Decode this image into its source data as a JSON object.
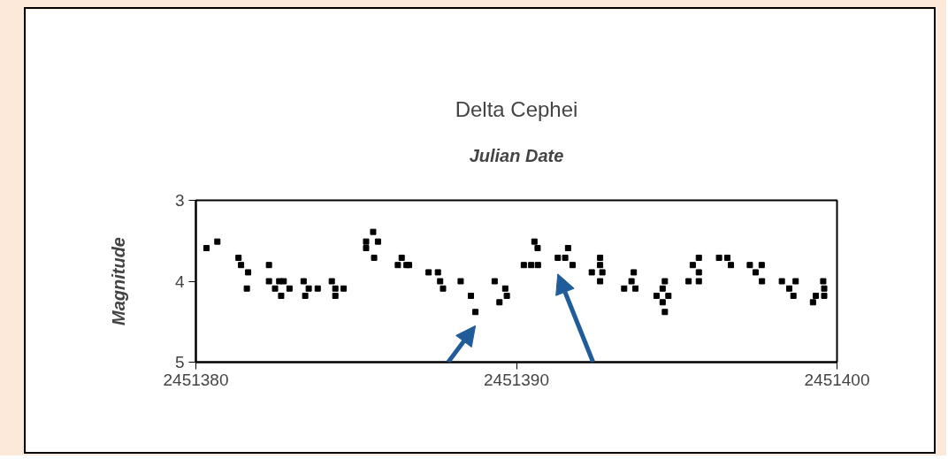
{
  "chart_data": {
    "type": "scatter",
    "title": "Delta Cephei",
    "xlabel": "Julian Date",
    "ylabel": "Magnitude",
    "x": [
      2451380.33,
      2451380.67,
      2451381.33,
      2451381.41,
      2451381.63,
      2451381.59,
      2451382.28,
      2451382.28,
      2451382.6,
      2451382.74,
      2451382.47,
      2451382.92,
      2451382.66,
      2451383.36,
      2451383.52,
      2451383.8,
      2451383.41,
      2451384.24,
      2451384.35,
      2451384.61,
      2451384.35,
      2451385.31,
      2451385.31,
      2451385.53,
      2451385.68,
      2451385.56,
      2451386.42,
      2451386.3,
      2451386.57,
      2451386.65,
      2451387.26,
      2451387.55,
      2451387.62,
      2451387.71,
      2451388.26,
      2451388.58,
      2451388.72,
      2451389.32,
      2451389.65,
      2451389.7,
      2451389.47,
      2451390.56,
      2451390.66,
      2451390.23,
      2451390.46,
      2451390.67,
      2451391.61,
      2451391.29,
      2451391.52,
      2451391.75,
      2451392.61,
      2451392.61,
      2451392.35,
      2451392.68,
      2451392.61,
      2451393.66,
      2451393.59,
      2451393.36,
      2451393.71,
      2451394.63,
      2451394.56,
      2451394.37,
      2451394.74,
      2451394.56,
      2451394.63,
      2451395.69,
      2451395.5,
      2451395.69,
      2451395.37,
      2451395.69,
      2451396.32,
      2451396.58,
      2451396.69,
      2451397.28,
      2451397.65,
      2451397.46,
      2451397.66,
      2451398.28,
      2451398.71,
      2451398.51,
      2451398.64,
      2451399.57,
      2451399.6,
      2451399.34,
      2451399.6,
      2451399.25
    ],
    "values": [
      3.59,
      3.51,
      3.71,
      3.8,
      3.89,
      4.09,
      3.8,
      4.0,
      4.0,
      4.0,
      4.09,
      4.09,
      4.18,
      4.0,
      4.09,
      4.09,
      4.18,
      4.0,
      4.09,
      4.09,
      4.18,
      3.51,
      3.59,
      3.39,
      3.51,
      3.71,
      3.71,
      3.8,
      3.8,
      3.8,
      3.89,
      3.89,
      4.0,
      4.09,
      4.0,
      4.18,
      4.38,
      4.0,
      4.09,
      4.18,
      4.26,
      3.51,
      3.59,
      3.8,
      3.8,
      3.8,
      3.59,
      3.71,
      3.71,
      3.8,
      3.71,
      3.8,
      3.89,
      3.89,
      4.0,
      3.89,
      4.0,
      4.09,
      4.09,
      4.0,
      4.09,
      4.18,
      4.18,
      4.26,
      4.38,
      3.71,
      3.8,
      3.89,
      4.0,
      4.0,
      3.71,
      3.71,
      3.8,
      3.8,
      3.8,
      3.89,
      4.0,
      4.0,
      4.0,
      4.09,
      4.18,
      4.0,
      4.09,
      4.18,
      4.18,
      4.26
    ],
    "color": "#000000",
    "marker": "square",
    "xlim": [
      2451380,
      2451400
    ],
    "xticks": [
      2451380,
      2451390,
      2451400
    ],
    "ylim": [
      5,
      3
    ],
    "yticks": [
      3,
      4,
      5
    ],
    "grid": false
  }
}
